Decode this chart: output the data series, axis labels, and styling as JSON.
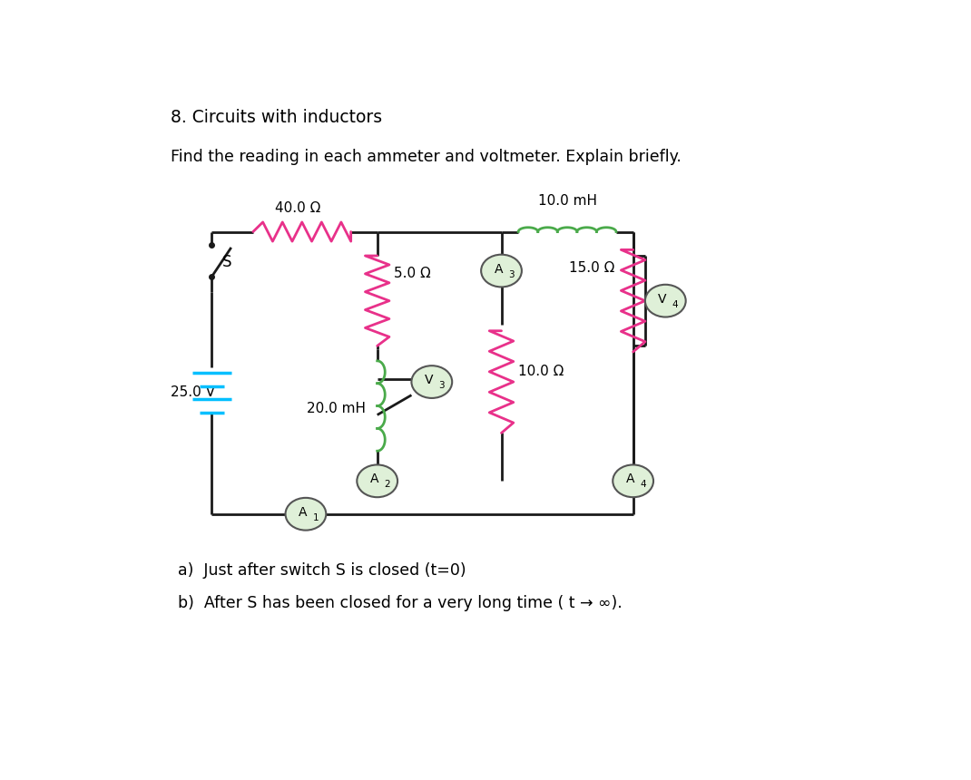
{
  "title": "8. Circuits with inductors",
  "question": "Find the reading in each ammeter and voltmeter. Explain briefly.",
  "part_a": "a)  Just after switch S is closed (t=0)",
  "part_b": "b)  After S has been closed for a very long time ( t → ∞).",
  "bg_color": "#ffffff",
  "pink": "#e8318a",
  "green": "#4aaa4a",
  "wire_color": "#1a1a1a",
  "battery_color": "#00bfff",
  "meter_fill": "#dff0d8",
  "meter_stroke": "#555555",
  "L": 0.12,
  "R": 0.68,
  "T": 0.77,
  "B": 0.3,
  "M1": 0.34,
  "M2": 0.505
}
